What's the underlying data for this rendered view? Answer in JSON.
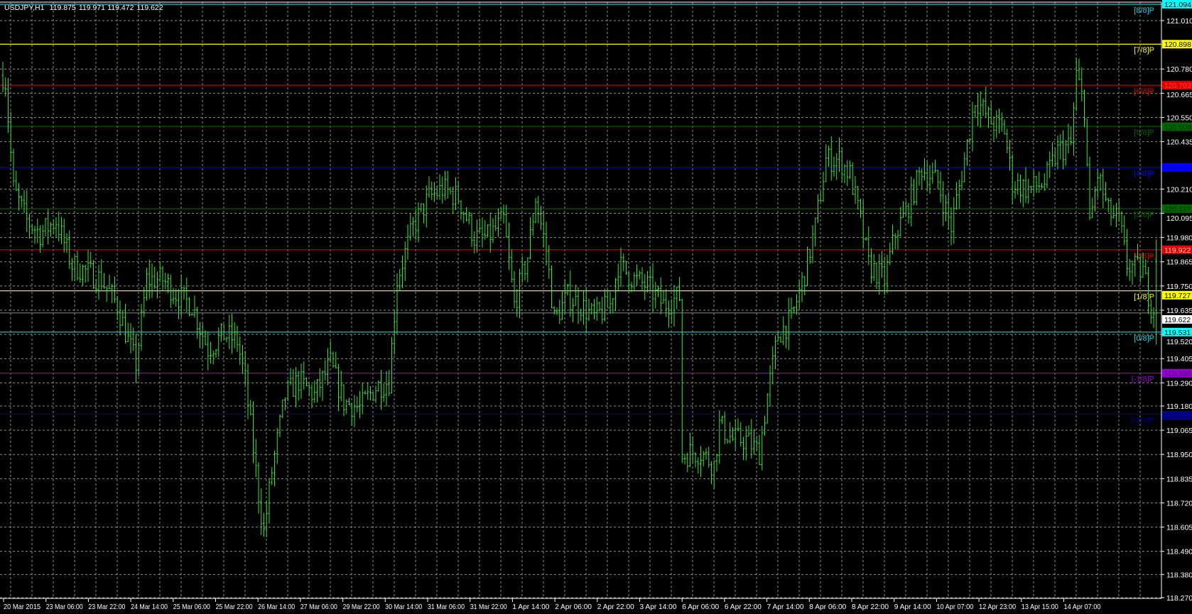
{
  "chart_data": {
    "type": "ohlc-bar",
    "title": "USDJPY,H1",
    "ohlc_readout": [
      "119.875",
      "119.971",
      "119.472",
      "119.622"
    ],
    "grid": true,
    "colors": {
      "background": "#000000",
      "bars": "#32e632",
      "grid": "#8c8c8c",
      "axis": "#ffffff",
      "current_price": "#808890"
    },
    "ylim": [
      118.27,
      121.094
    ],
    "y_ticks": [
      "121.010",
      "120.780",
      "120.665",
      "120.550",
      "120.435",
      "120.210",
      "120.095",
      "119.980",
      "119.865",
      "119.750",
      "119.635",
      "119.520",
      "119.405",
      "119.290",
      "119.180",
      "119.065",
      "118.950",
      "118.835",
      "118.720",
      "118.605",
      "118.490",
      "118.380",
      "118.270"
    ],
    "x_ticks": [
      "20 Mar 2015",
      "23 Mar 06:00",
      "23 Mar 22:00",
      "24 Mar 14:00",
      "25 Mar 06:00",
      "25 Mar 22:00",
      "26 Mar 14:00",
      "27 Mar 06:00",
      "29 Mar 22:00",
      "30 Mar 14:00",
      "31 Mar 06:00",
      "31 Mar 22:00",
      "1 Apr 14:00",
      "2 Apr 06:00",
      "2 Apr 22:00",
      "3 Apr 14:00",
      "6 Apr 06:00",
      "6 Apr 22:00",
      "7 Apr 14:00",
      "8 Apr 06:00",
      "8 Apr 22:00",
      "9 Apr 14:00",
      "10 Apr 07:00",
      "12 Apr 23:00",
      "13 Apr 15:00",
      "14 Apr 07:00"
    ],
    "bar_count": 434,
    "approx_close_path": [
      [
        0,
        120.75
      ],
      [
        1,
        120.72
      ],
      [
        4,
        120.21
      ],
      [
        9,
        120.06
      ],
      [
        14,
        120.0
      ],
      [
        20,
        120.06
      ],
      [
        26,
        119.85
      ],
      [
        31,
        119.82
      ],
      [
        37,
        119.78
      ],
      [
        43,
        119.66
      ],
      [
        47,
        119.49
      ],
      [
        50,
        119.38
      ],
      [
        54,
        119.78
      ],
      [
        60,
        119.78
      ],
      [
        66,
        119.7
      ],
      [
        71,
        119.66
      ],
      [
        77,
        119.45
      ],
      [
        83,
        119.52
      ],
      [
        88,
        119.49
      ],
      [
        91,
        119.3
      ],
      [
        96,
        118.76
      ],
      [
        98,
        118.58
      ],
      [
        101,
        118.87
      ],
      [
        106,
        119.23
      ],
      [
        111,
        119.3
      ],
      [
        117,
        119.23
      ],
      [
        123,
        119.38
      ],
      [
        128,
        119.2
      ],
      [
        134,
        119.17
      ],
      [
        140,
        119.27
      ],
      [
        145,
        119.3
      ],
      [
        148,
        119.78
      ],
      [
        154,
        120.03
      ],
      [
        160,
        120.17
      ],
      [
        165,
        120.21
      ],
      [
        171,
        120.17
      ],
      [
        177,
        119.98
      ],
      [
        182,
        119.98
      ],
      [
        188,
        120.06
      ],
      [
        192,
        119.66
      ],
      [
        197,
        119.89
      ],
      [
        200,
        120.17
      ],
      [
        204,
        119.92
      ],
      [
        207,
        119.59
      ],
      [
        212,
        119.7
      ],
      [
        217,
        119.66
      ],
      [
        222,
        119.6
      ],
      [
        228,
        119.66
      ],
      [
        231,
        119.85
      ],
      [
        237,
        119.78
      ],
      [
        242,
        119.75
      ],
      [
        248,
        119.66
      ],
      [
        254,
        119.7
      ],
      [
        255,
        118.94
      ],
      [
        258,
        118.96
      ],
      [
        262,
        118.96
      ],
      [
        267,
        118.9
      ],
      [
        269,
        119.09
      ],
      [
        274,
        119.02
      ],
      [
        279,
        119.02
      ],
      [
        284,
        118.96
      ],
      [
        287,
        119.23
      ],
      [
        291,
        119.52
      ],
      [
        296,
        119.59
      ],
      [
        301,
        119.81
      ],
      [
        305,
        120.03
      ],
      [
        309,
        120.35
      ],
      [
        314,
        120.35
      ],
      [
        318,
        120.28
      ],
      [
        322,
        120.06
      ],
      [
        325,
        119.85
      ],
      [
        331,
        119.78
      ],
      [
        335,
        120.0
      ],
      [
        339,
        120.1
      ],
      [
        345,
        120.31
      ],
      [
        351,
        120.24
      ],
      [
        356,
        120.03
      ],
      [
        361,
        120.35
      ],
      [
        365,
        120.64
      ],
      [
        371,
        120.53
      ],
      [
        376,
        120.49
      ],
      [
        379,
        120.24
      ],
      [
        385,
        120.21
      ],
      [
        391,
        120.24
      ],
      [
        396,
        120.39
      ],
      [
        401,
        120.42
      ],
      [
        403,
        120.75
      ],
      [
        406,
        120.6
      ],
      [
        408,
        120.03
      ],
      [
        411,
        120.28
      ],
      [
        415,
        120.1
      ],
      [
        419,
        120.06
      ],
      [
        422,
        119.85
      ],
      [
        428,
        119.82
      ],
      [
        431,
        119.66
      ],
      [
        433,
        119.622
      ]
    ],
    "last_bar": {
      "open": 119.875,
      "high": 119.971,
      "low": 119.472,
      "close": 119.622
    },
    "current_price": {
      "value": "119.622",
      "color": "#808890",
      "label_bg": "#ffffff",
      "label_fg": "#000000"
    },
    "murrey_levels": [
      {
        "name": "[8/8]P",
        "value": "121.094",
        "color": "#00d8e0",
        "label_bg": "#00ffff",
        "label_fg": "#000000"
      },
      {
        "name": "[7/8]P",
        "value": "120.898",
        "color": "#ffff00",
        "label_bg": "#ffff00",
        "label_fg": "#000000"
      },
      {
        "name": "[6/8]P",
        "value": "120.703",
        "color": "#e00000",
        "label_bg": "#e00000",
        "label_fg": "#ff4040"
      },
      {
        "name": "[5/8]P",
        "value": "120.508",
        "color": "#006400",
        "label_bg": "#006400",
        "label_fg": "#003000"
      },
      {
        "name": "[4/8]P",
        "value": "120.313",
        "color": "#0000ff",
        "label_bg": "#0000ff",
        "label_fg": "#0000a0"
      },
      {
        "name": "[3/8]P",
        "value": "120.117",
        "color": "#006400",
        "label_bg": "#006400",
        "label_fg": "#003000"
      },
      {
        "name": "[2/8]P",
        "value": "119.922",
        "color": "#e00000",
        "label_bg": "#e00000",
        "label_fg": "#ffd0d0"
      },
      {
        "name": "[1/8]P",
        "value": "119.727",
        "color": "#ffff00",
        "label_bg": "#ffff00",
        "label_fg": "#000000"
      },
      {
        "name": "[0/8]P",
        "value": "119.531",
        "color": "#00d8e0",
        "label_bg": "#00ffff",
        "label_fg": "#000000"
      },
      {
        "name": "[-1/8]P",
        "value": "119.336",
        "color": "#9400d3",
        "label_bg": "#9400d3",
        "label_fg": "#4b0070"
      },
      {
        "name": "[-2/8]P",
        "value": "119.141",
        "color": "#000090",
        "label_bg": "#000090",
        "label_fg": "#000050"
      }
    ]
  }
}
